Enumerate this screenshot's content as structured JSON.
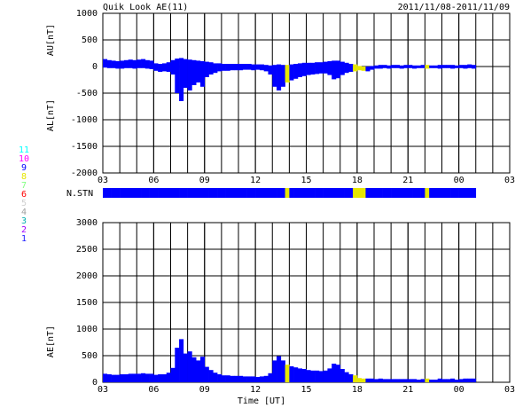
{
  "chart_data": {
    "type": "bar",
    "title": "Quik Look AE(11)",
    "subtitle": "2011/11/08-2011/11/09",
    "xlabel": "Time [UT]",
    "ylabels": [
      "AU[nT]",
      "AL[nT]",
      "AE[nT]"
    ],
    "x": [
      3,
      3.25,
      3.5,
      3.75,
      4,
      4.25,
      4.5,
      4.75,
      5,
      5.25,
      5.5,
      5.75,
      6,
      6.25,
      6.5,
      6.75,
      7,
      7.25,
      7.5,
      7.75,
      8,
      8.25,
      8.5,
      8.75,
      9,
      9.25,
      9.5,
      9.75,
      10,
      10.25,
      10.5,
      10.75,
      11,
      11.25,
      11.5,
      11.75,
      12,
      12.25,
      12.5,
      12.75,
      13,
      13.25,
      13.5,
      13.75,
      14,
      14.25,
      14.5,
      14.75,
      15,
      15.25,
      15.5,
      15.75,
      16,
      16.25,
      16.5,
      16.75,
      17,
      17.25,
      17.5,
      17.75,
      18,
      18.25,
      18.5,
      18.75,
      19,
      19.25,
      19.5,
      19.75,
      20,
      20.25,
      20.5,
      20.75,
      21,
      21.25,
      21.5,
      21.75,
      22,
      22.25,
      22.5,
      22.75,
      23,
      23.25,
      23.5,
      23.75,
      24,
      24.25,
      24.5,
      24.75
    ],
    "xlim": [
      3,
      27
    ],
    "xticks": [
      {
        "value": 3,
        "label": "03"
      },
      {
        "value": 6,
        "label": "06"
      },
      {
        "value": 9,
        "label": "09"
      },
      12,
      15,
      18,
      21,
      {
        "value": 24,
        "label": "00"
      },
      {
        "value": 27,
        "label": "03"
      }
    ],
    "ylim": [
      -2000,
      1000
    ],
    "yticks": [
      -2000,
      -1500,
      -1000,
      -500,
      0,
      500,
      1000
    ],
    "y2lim": [
      0,
      3000
    ],
    "y2ticks": [
      0,
      500,
      1000,
      1500,
      2000,
      2500,
      3000
    ],
    "grid": true,
    "series": [
      {
        "values": [
          140,
          120,
          110,
          100,
          110,
          120,
          130,
          120,
          130,
          140,
          120,
          110,
          60,
          50,
          60,
          80,
          120,
          150,
          160,
          140,
          130,
          120,
          110,
          100,
          90,
          80,
          60,
          60,
          50,
          50,
          50,
          50,
          50,
          50,
          50,
          40,
          40,
          40,
          30,
          20,
          30,
          40,
          30,
          30,
          40,
          50,
          60,
          70,
          70,
          70,
          80,
          80,
          90,
          100,
          110,
          110,
          90,
          70,
          50,
          40,
          10,
          -10,
          -20,
          10,
          20,
          30,
          30,
          20,
          30,
          30,
          20,
          30,
          30,
          20,
          20,
          30,
          30,
          20,
          20,
          30,
          30,
          30,
          30,
          20,
          30,
          30,
          40,
          30
        ]
      },
      {
        "values": [
          -20,
          -30,
          -30,
          -40,
          -40,
          -30,
          -30,
          -40,
          -30,
          -30,
          -40,
          -50,
          -80,
          -100,
          -90,
          -100,
          -150,
          -500,
          -650,
          -400,
          -450,
          -350,
          -300,
          -380,
          -200,
          -150,
          -120,
          -90,
          -80,
          -80,
          -70,
          -70,
          -70,
          -60,
          -60,
          -70,
          -60,
          -70,
          -90,
          -150,
          -380,
          -450,
          -380,
          -300,
          -260,
          -230,
          -200,
          -180,
          -160,
          -150,
          -140,
          -130,
          -130,
          -160,
          -240,
          -220,
          -160,
          -120,
          -100,
          -90,
          -70,
          -80,
          -90,
          -60,
          -40,
          -40,
          -30,
          -40,
          -30,
          -30,
          -40,
          -30,
          -30,
          -40,
          -30,
          -30,
          -40,
          -30,
          -30,
          -40,
          -30,
          -30,
          -40,
          -30,
          -30,
          -40,
          -30,
          -40
        ]
      },
      {
        "axis": "y2",
        "values": [
          160,
          150,
          140,
          140,
          150,
          150,
          160,
          160,
          160,
          170,
          160,
          160,
          140,
          150,
          150,
          180,
          270,
          650,
          810,
          540,
          580,
          470,
          410,
          480,
          290,
          230,
          180,
          150,
          130,
          130,
          120,
          120,
          120,
          110,
          110,
          110,
          100,
          110,
          120,
          170,
          410,
          490,
          410,
          330,
          300,
          280,
          260,
          250,
          230,
          220,
          220,
          210,
          220,
          260,
          350,
          330,
          250,
          190,
          150,
          130,
          80,
          70,
          70,
          70,
          60,
          70,
          60,
          60,
          60,
          60,
          60,
          60,
          60,
          60,
          50,
          60,
          70,
          50,
          50,
          70,
          60,
          60,
          70,
          50,
          60,
          70,
          70,
          70
        ]
      }
    ],
    "nstn": {
      "label": "N.STN",
      "values": [
        9,
        9,
        9,
        9,
        9,
        9,
        9,
        9,
        9,
        9,
        9,
        9,
        9,
        9,
        9,
        9,
        9,
        9,
        9,
        9,
        9,
        9,
        9,
        9,
        9,
        9,
        9,
        9,
        9,
        9,
        9,
        9,
        9,
        9,
        9,
        9,
        9,
        9,
        9,
        9,
        9,
        9,
        9,
        8,
        9,
        9,
        9,
        9,
        9,
        9,
        9,
        9,
        9,
        9,
        9,
        9,
        9,
        9,
        9,
        8,
        8,
        8,
        9,
        9,
        9,
        9,
        9,
        9,
        9,
        9,
        9,
        9,
        9,
        9,
        9,
        9,
        8,
        9,
        9,
        9,
        9,
        9,
        9,
        9,
        9,
        9,
        9,
        9
      ]
    },
    "stations": [
      11,
      10,
      9,
      8,
      7,
      6,
      5,
      4,
      3,
      2,
      1
    ],
    "station_colors": [
      "#00ffff",
      "#ff00ff",
      "#0000ff",
      "#e6e600",
      "#80ff80",
      "#ff0000",
      "#d0d0d0",
      "#a0a0a0",
      "#00b0b0",
      "#a000ff",
      "#2020ff"
    ]
  }
}
